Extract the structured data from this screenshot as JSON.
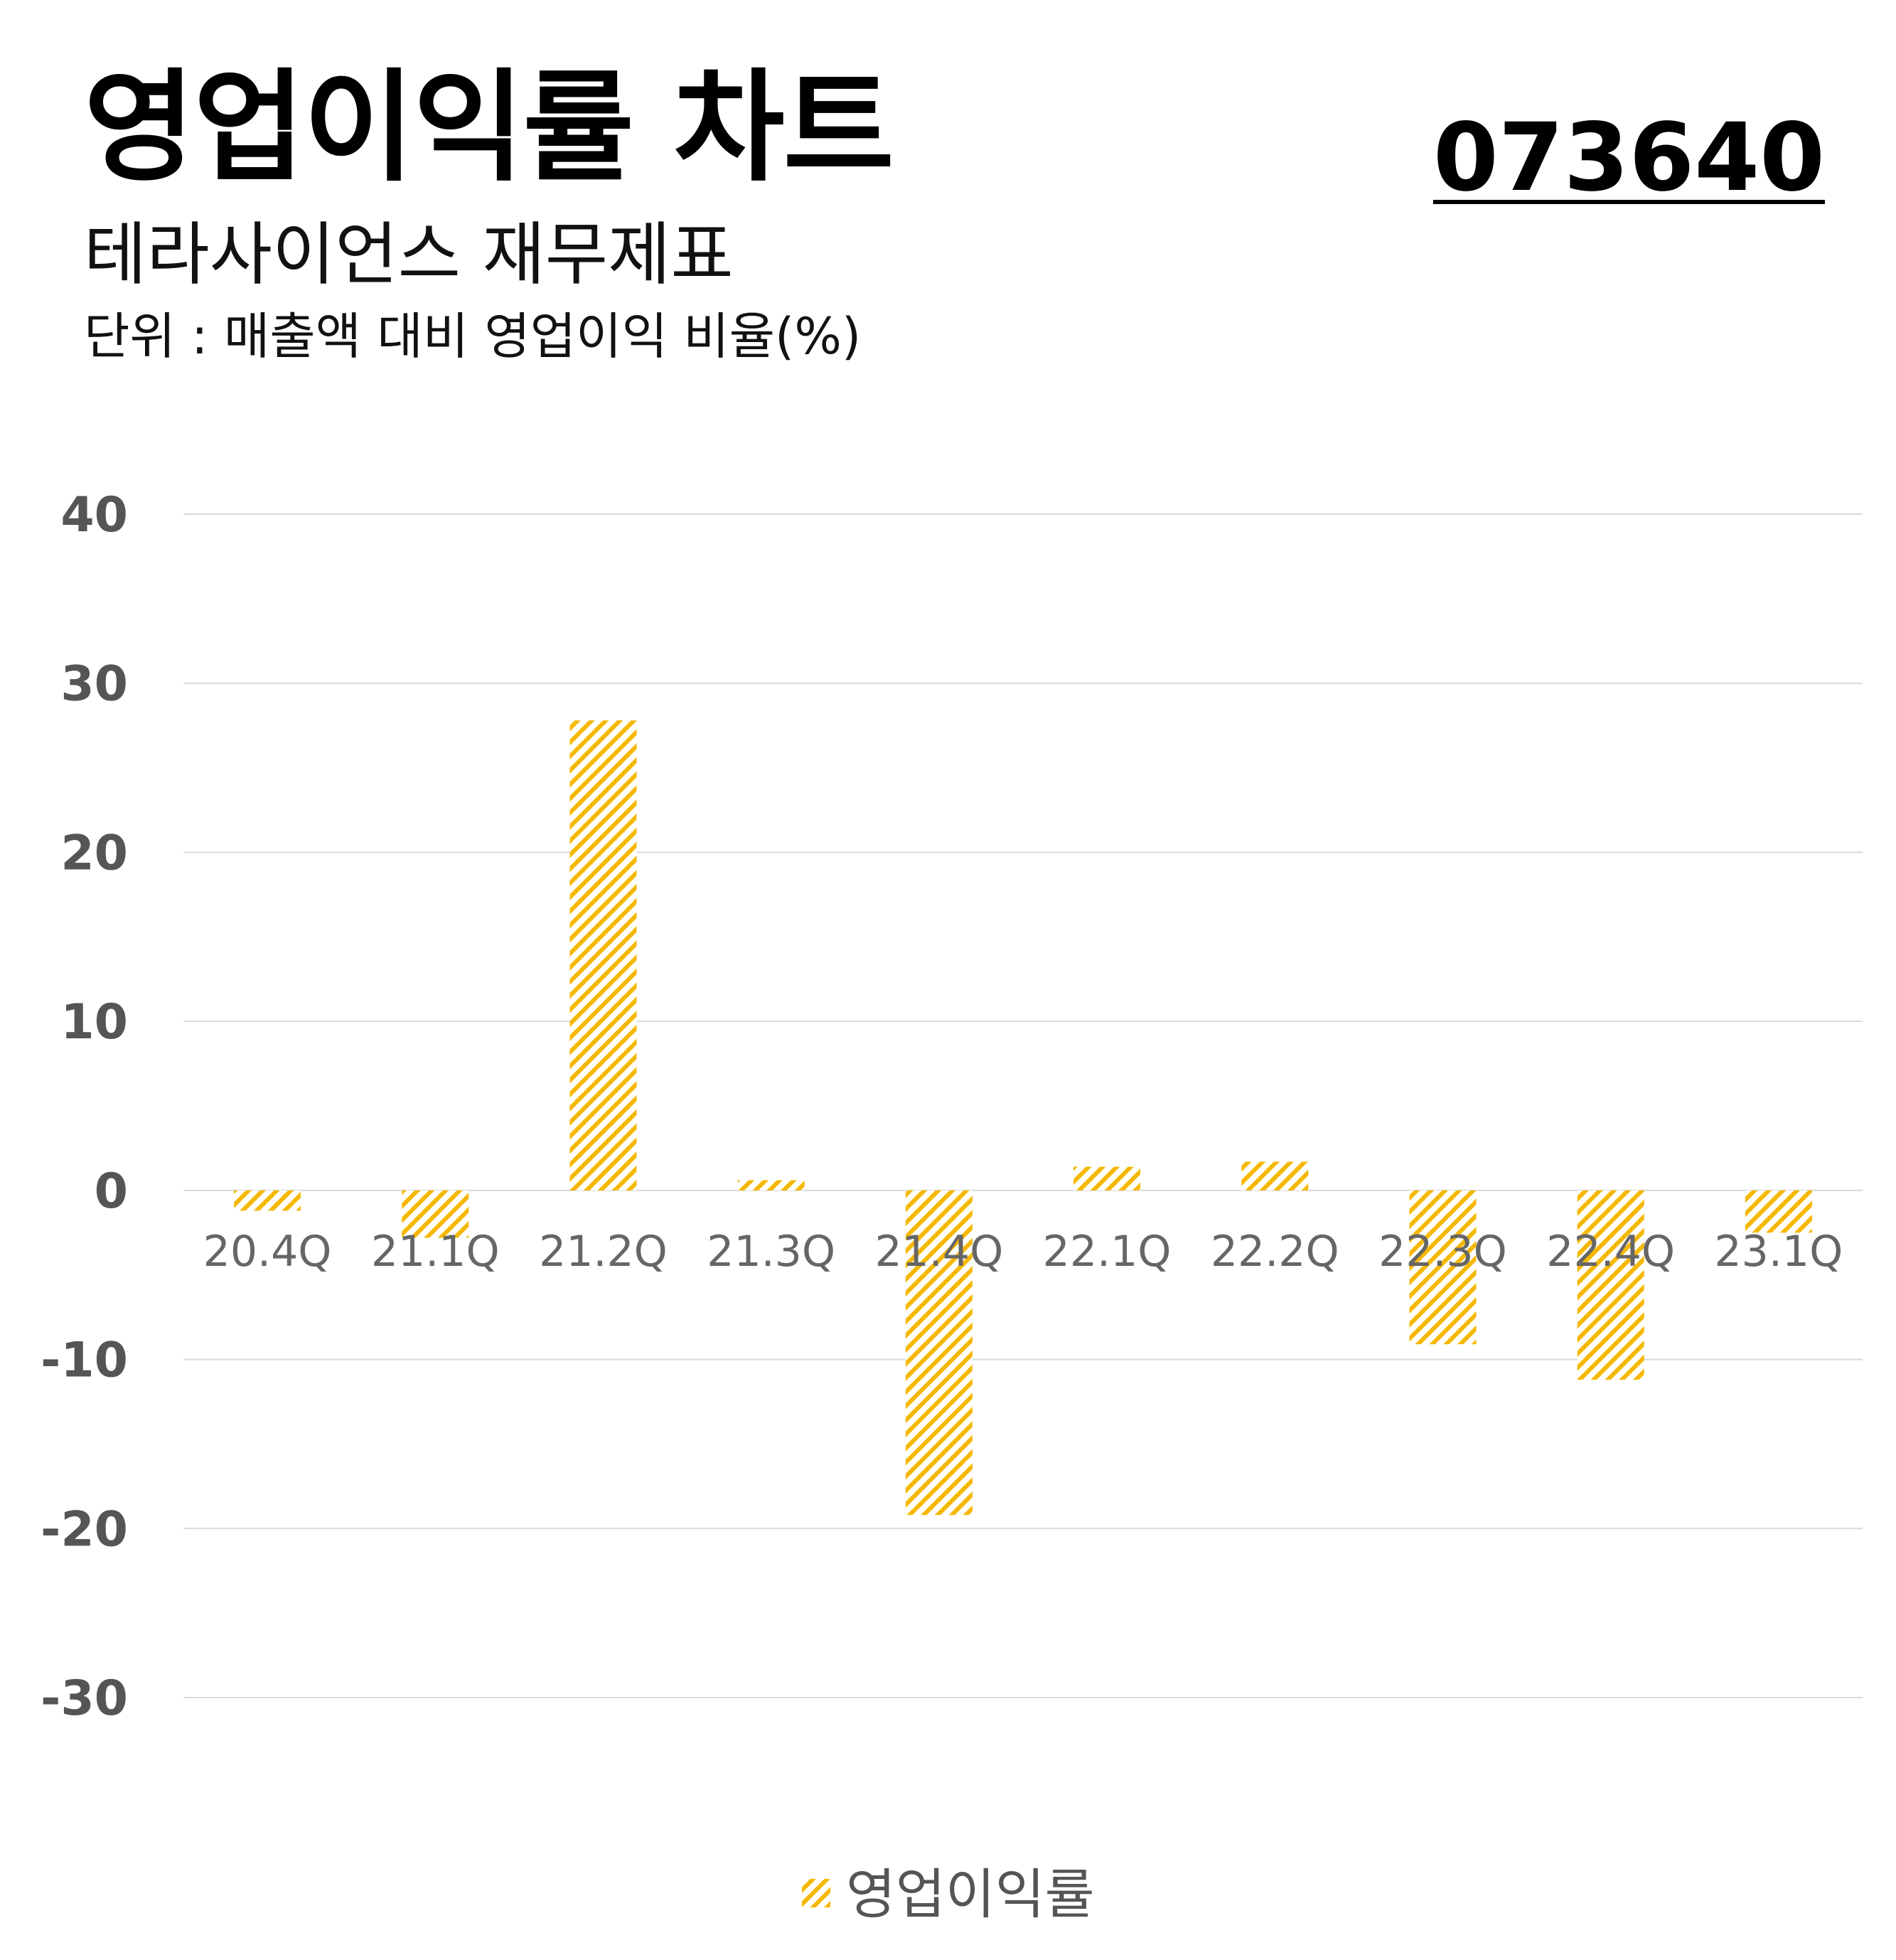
{
  "header": {
    "title": "영업이익률 차트",
    "code": "073640",
    "subtitle": "테라사이언스 재무제표",
    "unit": "단위 : 매출액 대비 영업이익 비율(%)"
  },
  "colors": {
    "bar": "#F5B800",
    "grid": "#d9d9d9",
    "tick": "#555555"
  },
  "chart_data": {
    "type": "bar",
    "categories": [
      "20.4Q",
      "21.1Q",
      "21.2Q",
      "21.3Q",
      "21.4Q",
      "22.1Q",
      "22.2Q",
      "22.3Q",
      "22.4Q",
      "23.1Q"
    ],
    "series": [
      {
        "name": "영업이익률",
        "values": [
          -1.2,
          -2.8,
          27.8,
          0.6,
          -19.2,
          1.4,
          1.7,
          -9.1,
          -11.2,
          -2.5
        ]
      }
    ],
    "yticks": [
      "40",
      "30",
      "20",
      "10",
      "0",
      "-10",
      "-20",
      "-30"
    ],
    "ylim": [
      -30,
      40
    ],
    "grid": true,
    "bar_pattern": "diagonal-hatch",
    "legend_position": "bottom-center"
  }
}
